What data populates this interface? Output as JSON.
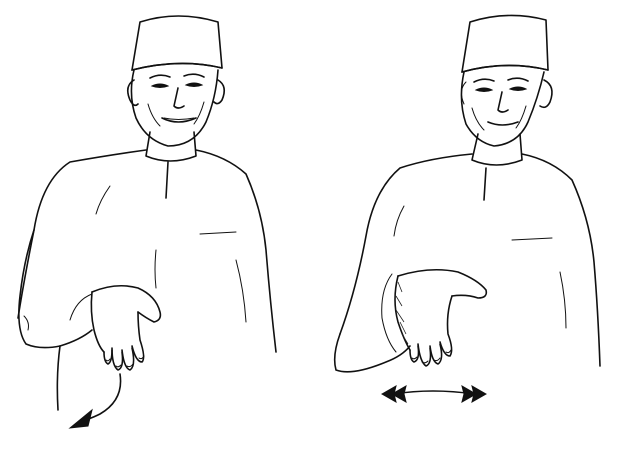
{
  "illustration": {
    "panels": [
      {
        "figure": "man-in-kufi-cap",
        "hand_shape": "flat-hand-palm-down",
        "movement": "curved-downward-arrow"
      },
      {
        "figure": "man-in-kufi-cap",
        "hand_shape": "flat-hand-palm-down",
        "movement": "double-headed-horizontal-arrow"
      }
    ]
  },
  "colors": {
    "ink": "#111111",
    "paper": "#ffffff"
  }
}
